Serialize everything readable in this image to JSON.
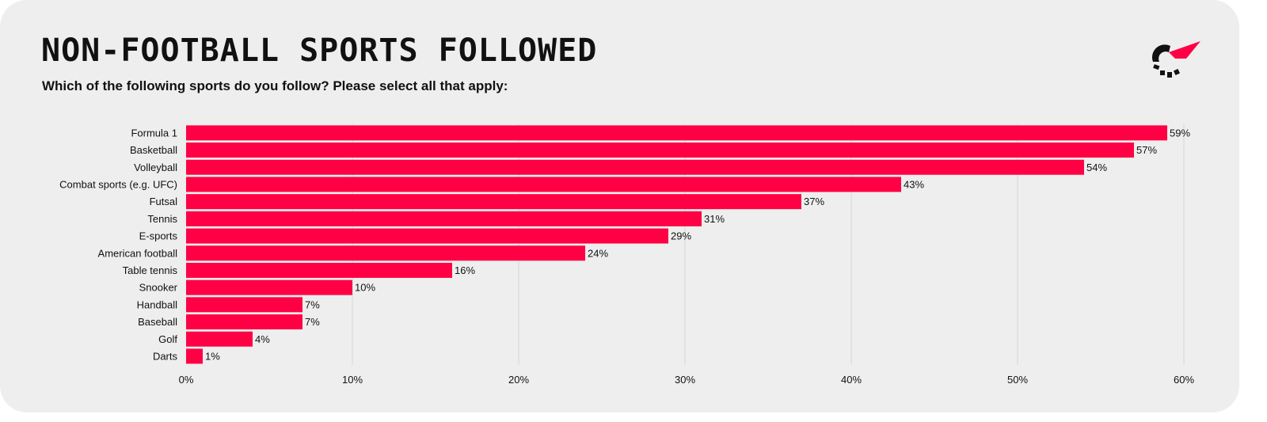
{
  "title": "NON-FOOTBALL SPORTS FOLLOWED",
  "subtitle": "Which of the following sports do you follow? Please select all that apply:",
  "logo_icon": "brand-logo-icon",
  "colors": {
    "background": "#eeeeee",
    "bar": "#ff0044",
    "text": "#111111",
    "grid": "#d6d6d6",
    "logo_dark": "#111111",
    "logo_accent": "#ff0044"
  },
  "chart_data": {
    "type": "bar",
    "orientation": "horizontal",
    "categories": [
      "Formula 1",
      "Basketball",
      "Volleyball",
      "Combat sports (e.g. UFC)",
      "Futsal",
      "Tennis",
      "E-sports",
      "American football",
      "Table tennis",
      "Snooker",
      "Handball",
      "Baseball",
      "Golf",
      "Darts"
    ],
    "values": [
      59,
      57,
      54,
      43,
      37,
      31,
      29,
      24,
      16,
      10,
      7,
      7,
      4,
      1
    ],
    "value_labels": [
      "59%",
      "57%",
      "54%",
      "43%",
      "37%",
      "31%",
      "29%",
      "24%",
      "16%",
      "10%",
      "7%",
      "7%",
      "4%",
      "1%"
    ],
    "xlim": [
      0,
      60
    ],
    "xticks": [
      0,
      10,
      20,
      30,
      40,
      50,
      60
    ],
    "xtick_labels": [
      "0%",
      "10%",
      "20%",
      "30%",
      "40%",
      "50%",
      "60%"
    ],
    "grid": true,
    "legend": "none"
  }
}
